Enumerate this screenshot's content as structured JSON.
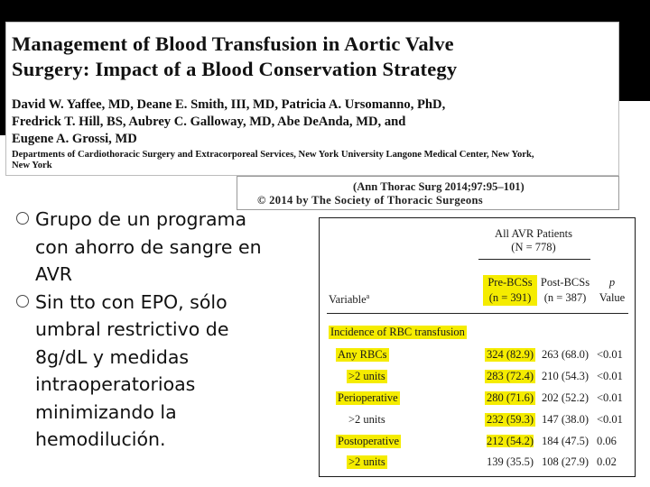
{
  "paper": {
    "title_line1": "Management of Blood Transfusion in Aortic Valve",
    "title_line2": "Surgery: Impact of a Blood Conservation Strategy",
    "authors_line1": "David W. Yaffee, MD, Deane E. Smith, III, MD, Patricia A. Ursomanno, PhD,",
    "authors_line2": "Fredrick T. Hill, BS, Aubrey C. Galloway, MD, Abe DeAnda, MD, and",
    "authors_line3": "Eugene A. Grossi, MD",
    "department_line1": "Departments of Cardiothoracic Surgery and Extracorporeal Services, New York University Langone Medical Center, New York,",
    "department_line2": "New York"
  },
  "citation": {
    "line1": "(Ann Thorac Surg 2014;97:95–101)",
    "line2": "© 2014 by The Society of Thoracic Surgeons"
  },
  "bullets": [
    {
      "lines": [
        "Grupo de un programa",
        "con ahorro de sangre en",
        "AVR"
      ]
    },
    {
      "lines": [
        "Sin tto con EPO, sólo",
        "umbral restrictivo de",
        "8g/dL  y medidas",
        "intraoperatorioas",
        "minimizando la",
        "hemodilución."
      ]
    }
  ],
  "table": {
    "group_header_line1": "All AVR Patients",
    "group_header_line2": "(N = 778)",
    "variable_label": "Variable",
    "variable_superscript": "a",
    "col_pre_line1": "Pre-BCSs",
    "col_pre_line2": "(n = 391)",
    "col_post_line1": "Post-BCSs",
    "col_post_line2": "(n = 387)",
    "col_p_line1": "p",
    "col_p_line2": "Value",
    "section_label": "Incidence of RBC transfusion",
    "rows": [
      {
        "label": "Any RBCs",
        "pre": "324 (82.9)",
        "post": "263 (68.0)",
        "p": "<0.01"
      },
      {
        "label": ">2 units",
        "pre": "283 (72.4)",
        "post": "210 (54.3)",
        "p": "<0.01"
      },
      {
        "label": "Perioperative",
        "pre": "280 (71.6)",
        "post": "202 (52.2)",
        "p": "<0.01"
      },
      {
        "label": ">2 units",
        "pre": "232 (59.3)",
        "post": "147 (38.0)",
        "p": "<0.01"
      },
      {
        "label": "Postoperative",
        "pre": "212 (54.2)",
        "post": "184 (47.5)",
        "p": "0.06"
      },
      {
        "label": ">2 units",
        "pre": "139 (35.5)",
        "post": "108 (27.9)",
        "p": "0.02"
      }
    ],
    "highlight_color": "#f5ec00"
  }
}
